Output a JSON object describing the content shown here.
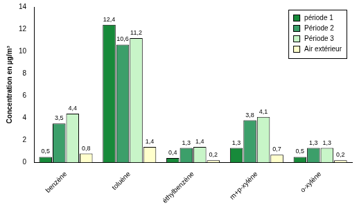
{
  "chart_data": {
    "type": "bar",
    "ylabel": "Concentration en µg/m³",
    "categories": [
      "benzène",
      "toluène",
      "éthylbenzène",
      "m+p-xylène",
      "o-xylène"
    ],
    "series": [
      {
        "name": "période 1",
        "color": "#178a3a",
        "values": [
          0.5,
          12.4,
          0.4,
          1.3,
          0.5
        ],
        "value_labels": [
          "0,5",
          "12,4",
          "0,4",
          "1,3",
          "0,5"
        ]
      },
      {
        "name": "Période 2",
        "color": "#3c9f6a",
        "values": [
          3.5,
          10.6,
          1.3,
          3.8,
          1.3
        ],
        "value_labels": [
          "3,5",
          "10,6",
          "1,3",
          "3,8",
          "1,3"
        ]
      },
      {
        "name": "Période 3",
        "color": "#c8f5c8",
        "values": [
          4.4,
          11.2,
          1.4,
          4.1,
          1.3
        ],
        "value_labels": [
          "4,4",
          "11,2",
          "1,4",
          "4,1",
          "1,3"
        ]
      },
      {
        "name": "Air extérieur",
        "color": "#ffffcc",
        "values": [
          0.8,
          1.4,
          0.2,
          0.7,
          0.2
        ],
        "value_labels": [
          "0,8",
          "1,4",
          "0,2",
          "0,7",
          "0,2"
        ]
      }
    ],
    "ylim": [
      0,
      14
    ],
    "yticks": [
      0,
      2,
      4,
      6,
      8,
      10,
      12,
      14
    ],
    "grid": false,
    "legend": "upper right",
    "data_labels": true
  }
}
